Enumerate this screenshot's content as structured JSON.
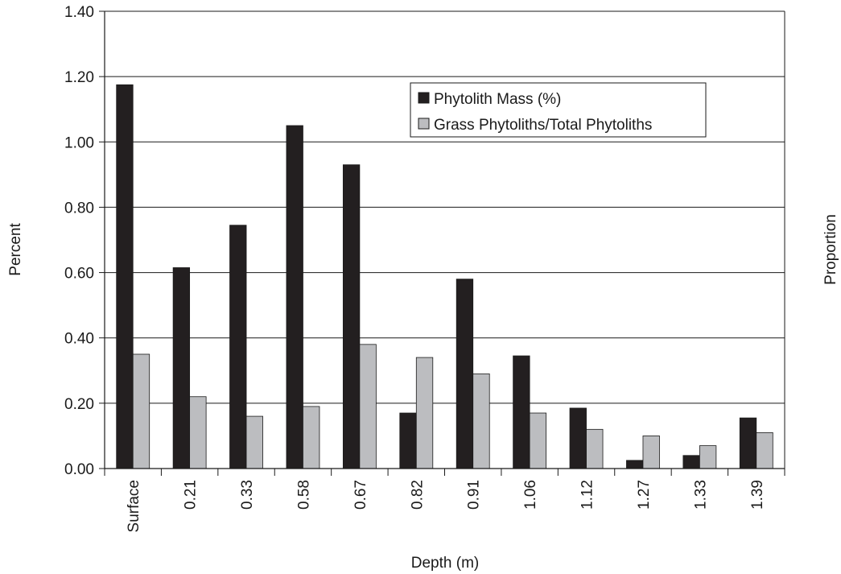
{
  "chart_data": {
    "type": "bar",
    "xlabel": "Depth (m)",
    "ylabel": "Percent",
    "y2label": "Proportion",
    "ylim": [
      0,
      1.4
    ],
    "yticks": [
      "0.00",
      "0.20",
      "0.40",
      "0.60",
      "0.80",
      "1.00",
      "1.20",
      "1.40"
    ],
    "categories": [
      "Surface",
      "0.21",
      "0.33",
      "0.58",
      "0.67",
      "0.82",
      "0.91",
      "1.06",
      "1.12",
      "1.27",
      "1.33",
      "1.39"
    ],
    "series": [
      {
        "name": "Phytolith Mass (%)",
        "color": "#231f20",
        "values": [
          1.175,
          0.615,
          0.745,
          1.05,
          0.93,
          0.17,
          0.58,
          0.345,
          0.185,
          0.025,
          0.04,
          0.155
        ]
      },
      {
        "name": "Grass Phytoliths/Total Phytoliths",
        "color": "#bcbdc0",
        "values": [
          0.35,
          0.22,
          0.16,
          0.19,
          0.38,
          0.34,
          0.29,
          0.17,
          0.12,
          0.1,
          0.07,
          0.11
        ]
      }
    ],
    "grid": true,
    "legend_position": "top-right"
  }
}
